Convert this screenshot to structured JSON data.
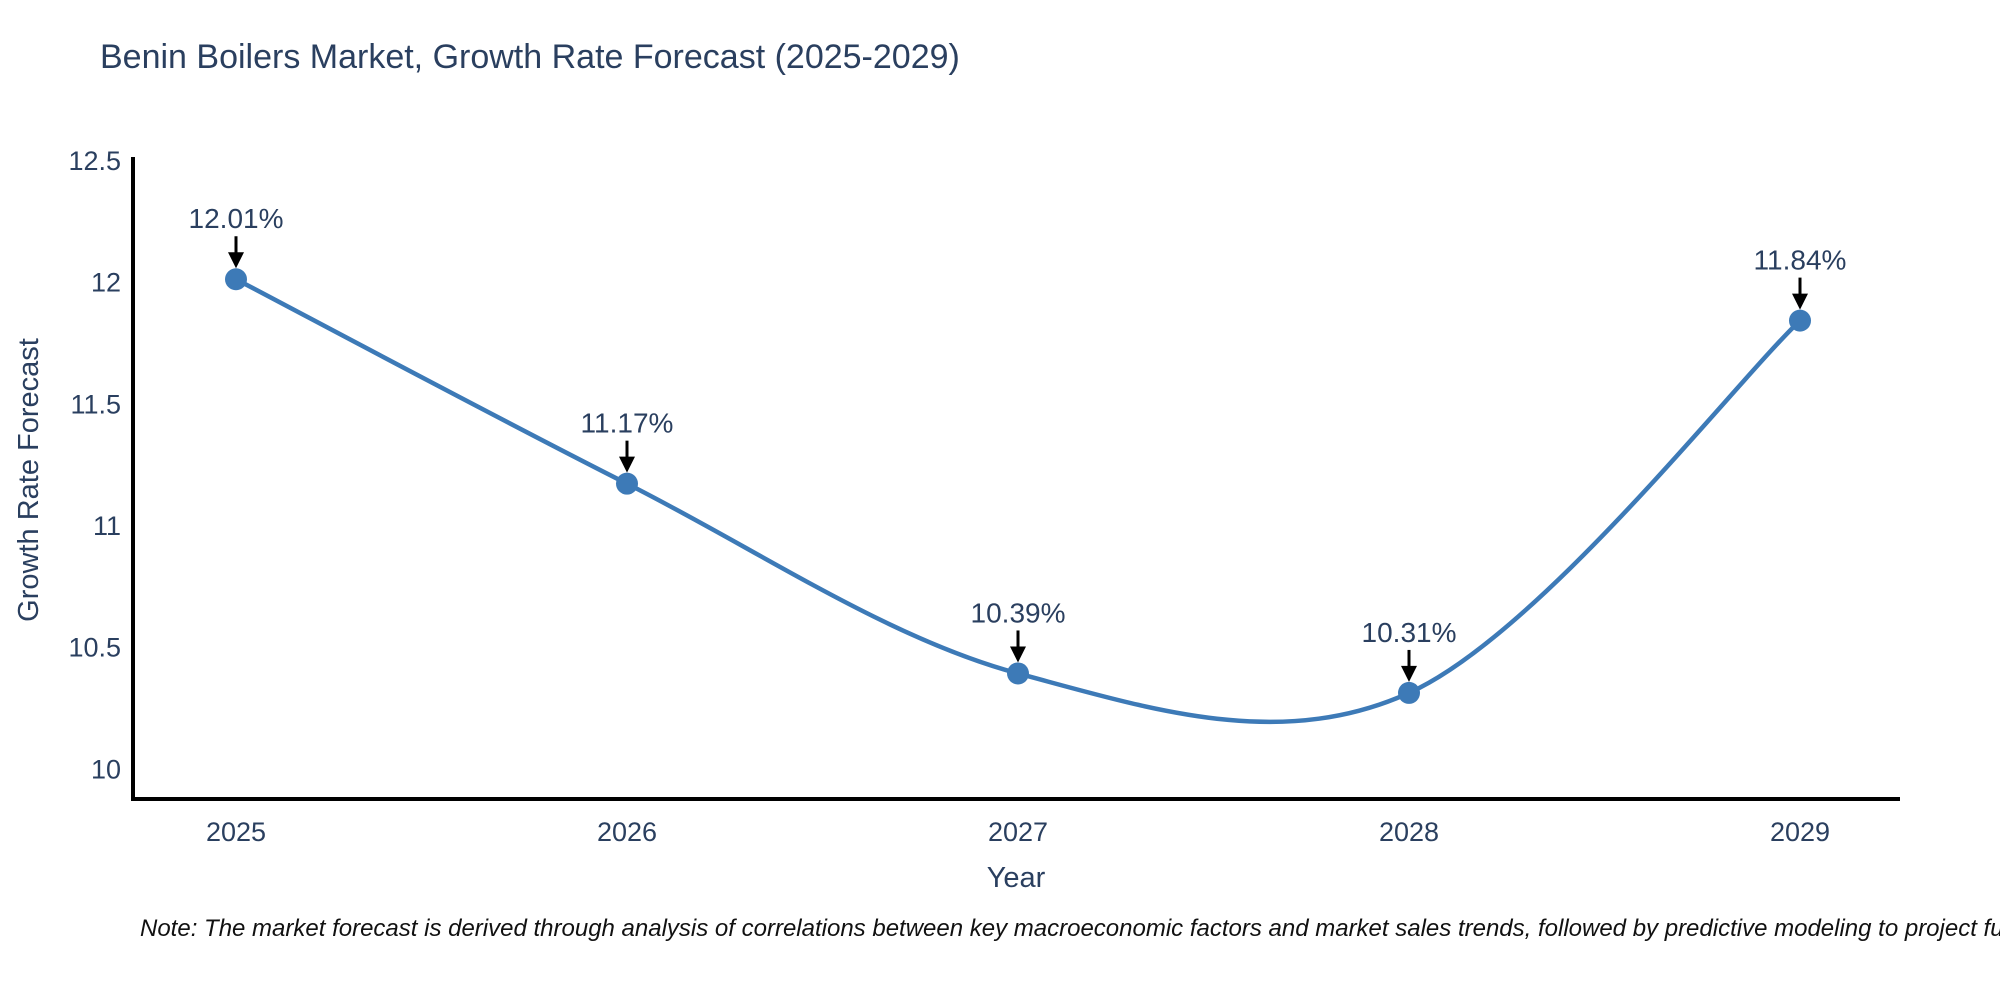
{
  "chart_data": {
    "type": "line",
    "title": "Benin Boilers Market, Growth Rate Forecast (2025-2029)",
    "xlabel": "Year",
    "ylabel": "Growth Rate Forecast",
    "x": [
      2025,
      2026,
      2027,
      2028,
      2029
    ],
    "series": [
      {
        "name": "Growth Rate Forecast",
        "values": [
          12.01,
          11.17,
          10.39,
          10.31,
          11.84
        ],
        "point_labels": [
          "12.01%",
          "11.17%",
          "10.39%",
          "10.31%",
          "11.84%"
        ]
      }
    ],
    "yticks": [
      12.5,
      12,
      11.5,
      11,
      10.5,
      10
    ],
    "ylim": [
      9.87,
      12.5
    ],
    "line_shape": "spline",
    "grid": false,
    "legend_position": "none",
    "colors": {
      "line": "#3d7ab7",
      "marker": "#3d7ab7",
      "axis": "#000000",
      "text": "#2a3f5f",
      "annotation_arrow": "#000000"
    }
  },
  "note": {
    "text": "Note: The market forecast is derived through analysis of correlations between key macroeconomic factors and market sales trends, followed by predictive modeling to project future sales"
  }
}
